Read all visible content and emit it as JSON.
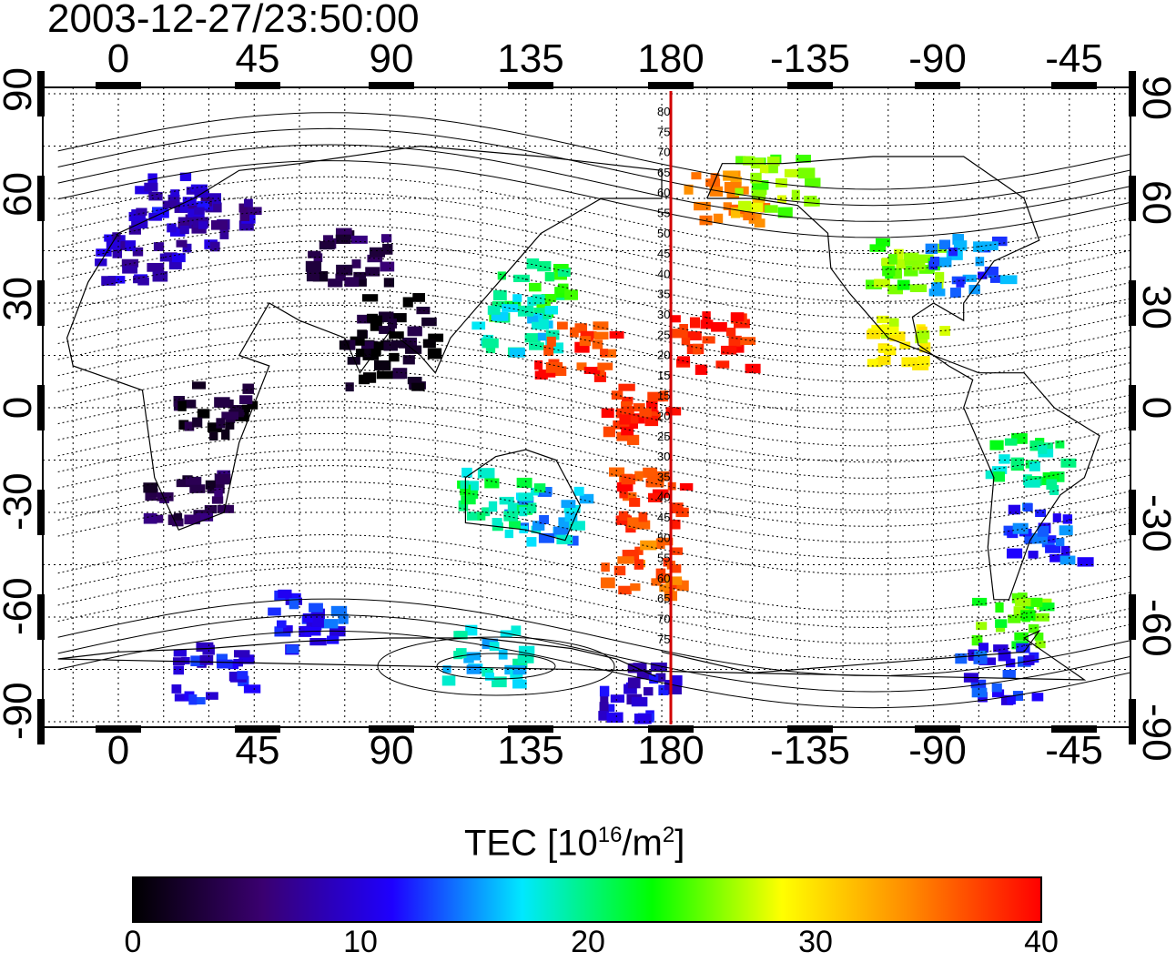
{
  "header": {
    "timestamp": "2003-12-27/23:50:00"
  },
  "map": {
    "lon_ticks": [
      "0",
      "45",
      "90",
      "135",
      "180",
      "-135",
      "-90",
      "-45"
    ],
    "lat_ticks": [
      "90",
      "60",
      "30",
      "0",
      "-30",
      "-60",
      "-90"
    ],
    "magnetic_latitude_labels": [
      "80",
      "75",
      "70",
      "65",
      "60",
      "55",
      "50",
      "45",
      "40",
      "35",
      "30",
      "25",
      "20",
      "15",
      "15",
      "20",
      "25",
      "30",
      "35",
      "40",
      "45",
      "50",
      "55",
      "60",
      "65",
      "70",
      "75"
    ],
    "marker_line_longitude": 183,
    "colors": {
      "marker_line": "#d10000",
      "coast": "#000000",
      "grid": "#000000"
    }
  },
  "colorbar": {
    "title_prefix": "TEC  [10",
    "title_exp": "16",
    "title_mid": "/m",
    "title_exp2": "2",
    "title_suffix": "]",
    "min": 0,
    "max": 40,
    "tick_labels": [
      "0",
      "10",
      "20",
      "30",
      "40"
    ],
    "colormap": [
      "#000000",
      "#3a0070",
      "#1e00ff",
      "#00e8ff",
      "#00ff00",
      "#ffff00",
      "#ff8800",
      "#ff0000"
    ]
  },
  "tec_regions": [
    {
      "lon": 5,
      "lat": 45,
      "tec": 9
    },
    {
      "lon": 30,
      "lat": 55,
      "tec": 8
    },
    {
      "lon": 15,
      "lat": 60,
      "tec": 10
    },
    {
      "lon": 75,
      "lat": 45,
      "tec": 4
    },
    {
      "lon": 90,
      "lat": 25,
      "tec": 2
    },
    {
      "lon": 85,
      "lat": 15,
      "tec": 1
    },
    {
      "lon": 135,
      "lat": 35,
      "tec": 22
    },
    {
      "lon": 130,
      "lat": 25,
      "tec": 18
    },
    {
      "lon": 150,
      "lat": 18,
      "tec": 38
    },
    {
      "lon": 170,
      "lat": 0,
      "tec": 39
    },
    {
      "lon": 175,
      "lat": -25,
      "tec": 38
    },
    {
      "lon": 172,
      "lat": -45,
      "tec": 36
    },
    {
      "lon": 140,
      "lat": -30,
      "tec": 16
    },
    {
      "lon": 125,
      "lat": -25,
      "tec": 20
    },
    {
      "lon": 195,
      "lat": 20,
      "tec": 39
    },
    {
      "lon": 200,
      "lat": 60,
      "tec": 34
    },
    {
      "lon": 215,
      "lat": 65,
      "tec": 26
    },
    {
      "lon": -100,
      "lat": 42,
      "tec": 25
    },
    {
      "lon": -80,
      "lat": 42,
      "tec": 14
    },
    {
      "lon": -100,
      "lat": 20,
      "tec": 28
    },
    {
      "lon": -60,
      "lat": -15,
      "tec": 20
    },
    {
      "lon": -55,
      "lat": -35,
      "tec": 13
    },
    {
      "lon": -65,
      "lat": -60,
      "tec": 24
    },
    {
      "lon": -70,
      "lat": -75,
      "tec": 12
    },
    {
      "lon": 20,
      "lat": -25,
      "tec": 4
    },
    {
      "lon": 30,
      "lat": 0,
      "tec": 2
    },
    {
      "lon": 60,
      "lat": -60,
      "tec": 12
    },
    {
      "lon": 120,
      "lat": -70,
      "tec": 17
    },
    {
      "lon": 30,
      "lat": -75,
      "tec": 11
    },
    {
      "lon": 170,
      "lat": -80,
      "tec": 10
    }
  ]
}
